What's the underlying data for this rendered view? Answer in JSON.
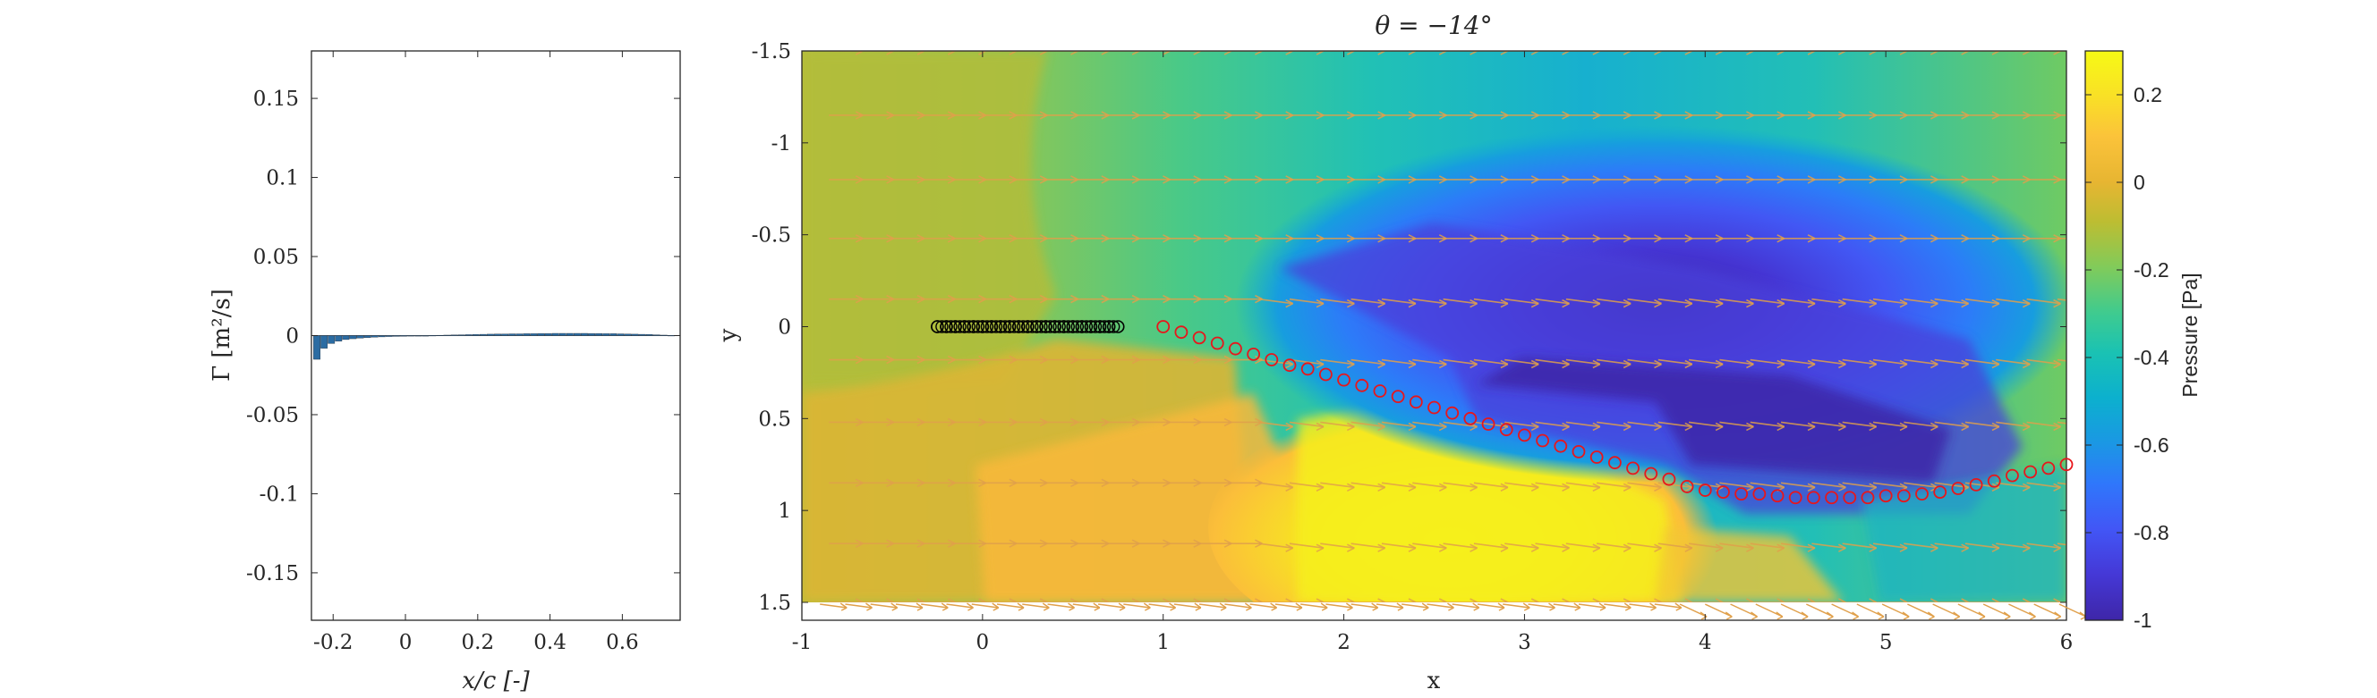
{
  "chart_data": [
    {
      "type": "bar",
      "xlabel": "x/c [-]",
      "ylabel": "Γ [m²/s]",
      "xlim": [
        -0.26,
        0.76
      ],
      "ylim": [
        -0.18,
        0.18
      ],
      "xticks": [
        "-0.2",
        "0",
        "0.2",
        "0.4",
        "0.6"
      ],
      "xtick_values": [
        -0.2,
        0,
        0.2,
        0.4,
        0.6
      ],
      "yticks": [
        "-0.15",
        "-0.1",
        "-0.05",
        "0",
        "0.05",
        "0.1",
        "0.15"
      ],
      "ytick_values": [
        -0.15,
        -0.1,
        -0.05,
        0,
        0.05,
        0.1,
        0.15
      ],
      "bar_color": "#2b6ca3",
      "x": [
        -0.245,
        -0.225,
        -0.205,
        -0.185,
        -0.165,
        -0.145,
        -0.125,
        -0.105,
        -0.085,
        -0.065,
        -0.045,
        -0.025,
        -0.005,
        0.015,
        0.035,
        0.055,
        0.075,
        0.095,
        0.115,
        0.135,
        0.155,
        0.175,
        0.195,
        0.215,
        0.235,
        0.255,
        0.275,
        0.295,
        0.315,
        0.335,
        0.355,
        0.375,
        0.395,
        0.415,
        0.435,
        0.455,
        0.475,
        0.495,
        0.515,
        0.535,
        0.555,
        0.575,
        0.595,
        0.615,
        0.635,
        0.655,
        0.675,
        0.695,
        0.715,
        0.735
      ],
      "values": [
        -0.015,
        -0.008,
        -0.005,
        -0.0035,
        -0.0025,
        -0.002,
        -0.0016,
        -0.0013,
        -0.001,
        -0.0008,
        -0.0006,
        -0.0005,
        -0.0004,
        -0.0003,
        -0.0002,
        -0.0001,
        0.0001,
        0.0002,
        0.0003,
        0.0004,
        0.0005,
        0.0006,
        0.0007,
        0.0008,
        0.0009,
        0.001,
        0.001,
        0.0011,
        0.0011,
        0.0012,
        0.0012,
        0.0013,
        0.0013,
        0.0014,
        0.0014,
        0.0014,
        0.0014,
        0.0014,
        0.0013,
        0.0013,
        0.0012,
        0.0012,
        0.0011,
        0.001,
        0.0009,
        0.0008,
        0.0007,
        0.0005,
        0.0003,
        0.0001
      ]
    },
    {
      "type": "heatmap",
      "title": "θ = −14°",
      "xlabel": "x",
      "ylabel": "y",
      "xlim": [
        -1,
        6
      ],
      "ylim": [
        -1.5,
        1.5
      ],
      "y_reversed": true,
      "xticks": [
        "-1",
        "0",
        "1",
        "2",
        "3",
        "4",
        "5",
        "6"
      ],
      "xtick_values": [
        -1,
        0,
        1,
        2,
        3,
        4,
        5,
        6
      ],
      "yticks": [
        "-1.5",
        "-1",
        "-0.5",
        "0",
        "0.5",
        "1",
        "1.5"
      ],
      "ytick_values": [
        -1.5,
        -1,
        -0.5,
        0,
        0.5,
        1,
        1.5
      ],
      "colorbar": {
        "label": "Pressure [Pa]",
        "range": [
          -1,
          0.3
        ],
        "ticks": [
          "-1",
          "-0.8",
          "-0.6",
          "-0.4",
          "-0.2",
          "0",
          "0.2"
        ],
        "tick_values": [
          -1,
          -0.8,
          -0.6,
          -0.4,
          -0.2,
          0,
          0.2
        ],
        "colormap": [
          "#3e26a8",
          "#4538d6",
          "#4256f6",
          "#2f77fb",
          "#1b97e4",
          "#0cb0ce",
          "#1ac2b3",
          "#3fcb8f",
          "#81cb5a",
          "#bdbd32",
          "#e7b532",
          "#fbc33a",
          "#f9e026",
          "#f6fa15"
        ]
      },
      "plate_markers": {
        "x": [
          -0.25,
          -0.2,
          -0.15,
          -0.1,
          -0.05,
          0,
          0.05,
          0.1,
          0.15,
          0.2,
          0.25,
          0.3,
          0.35,
          0.4,
          0.45,
          0.5,
          0.55,
          0.6,
          0.65,
          0.7,
          0.75
        ],
        "y": [
          0,
          0,
          0,
          0,
          0,
          0,
          0,
          0,
          0,
          0,
          0,
          0,
          0,
          0,
          0,
          0,
          0,
          0,
          0,
          0,
          0
        ],
        "color": "#000000"
      },
      "wake_markers": {
        "x": [
          1.0,
          1.1,
          1.2,
          1.3,
          1.4,
          1.5,
          1.6,
          1.7,
          1.8,
          1.9,
          2.0,
          2.1,
          2.2,
          2.3,
          2.4,
          2.5,
          2.6,
          2.7,
          2.8,
          2.9,
          3.0,
          3.1,
          3.2,
          3.3,
          3.4,
          3.5,
          3.6,
          3.7,
          3.8,
          3.9,
          4.0,
          4.1,
          4.2,
          4.3,
          4.4,
          4.5,
          4.6,
          4.7,
          4.8,
          4.9,
          5.0,
          5.1,
          5.2,
          5.3,
          5.4,
          5.5,
          5.6,
          5.7,
          5.8,
          5.9,
          6.0
        ],
        "y": [
          0.0,
          0.03,
          0.06,
          0.09,
          0.12,
          0.15,
          0.18,
          0.21,
          0.23,
          0.26,
          0.29,
          0.32,
          0.35,
          0.38,
          0.41,
          0.44,
          0.47,
          0.5,
          0.53,
          0.56,
          0.59,
          0.62,
          0.65,
          0.68,
          0.71,
          0.74,
          0.77,
          0.8,
          0.83,
          0.87,
          0.89,
          0.9,
          0.91,
          0.91,
          0.92,
          0.93,
          0.93,
          0.93,
          0.93,
          0.93,
          0.92,
          0.92,
          0.91,
          0.9,
          0.88,
          0.86,
          0.84,
          0.81,
          0.79,
          0.77,
          0.75
        ],
        "color": "#e8161b"
      },
      "velocity_arrows": {
        "color": "#e0a04b",
        "rows_y": [
          -1.5,
          -1.15,
          -0.8,
          -0.48,
          -0.15,
          0.18,
          0.52,
          0.85,
          1.18,
          1.5
        ]
      }
    }
  ]
}
